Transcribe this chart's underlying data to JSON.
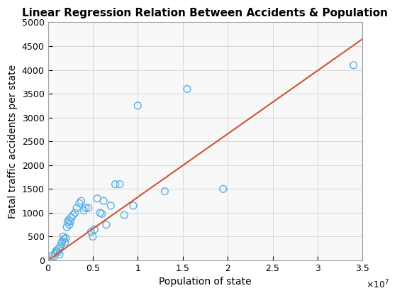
{
  "scatter_x": [
    500000,
    700000,
    800000,
    900000,
    1000000,
    1100000,
    1200000,
    1300000,
    1400000,
    1500000,
    1600000,
    1700000,
    1800000,
    1900000,
    2000000,
    2100000,
    2200000,
    2300000,
    2400000,
    2500000,
    2600000,
    2800000,
    3000000,
    3200000,
    3500000,
    3700000,
    4000000,
    4200000,
    4500000,
    4800000,
    5000000,
    5200000,
    5500000,
    5800000,
    6000000,
    6200000,
    6500000,
    7000000,
    7500000,
    8000000,
    8500000,
    9500000,
    10000000,
    13000000,
    15500000,
    19500000,
    34000000
  ],
  "scatter_y": [
    100,
    80,
    150,
    200,
    200,
    170,
    250,
    130,
    300,
    350,
    400,
    500,
    450,
    380,
    470,
    700,
    800,
    850,
    750,
    820,
    900,
    950,
    1000,
    1100,
    1200,
    1250,
    1050,
    1100,
    1100,
    600,
    500,
    650,
    1300,
    1000,
    980,
    1250,
    750,
    1150,
    1600,
    1600,
    950,
    1150,
    3250,
    1450,
    3600,
    1500,
    4100
  ],
  "line_x": [
    0,
    35000000
  ],
  "line_y": [
    0,
    4650
  ],
  "scatter_color": "#5baee3",
  "line_color": "#cc5533",
  "title": "Linear Regression Relation Between Accidents & Population",
  "xlabel": "Population of state",
  "ylabel": "Fatal traffic accidents per state",
  "xlim": [
    0,
    35000000
  ],
  "ylim": [
    0,
    5000
  ],
  "xtick_positions": [
    0,
    5000000,
    10000000,
    15000000,
    20000000,
    25000000,
    30000000,
    35000000
  ],
  "xtick_labels": [
    "0",
    "0.5",
    "1",
    "1.5",
    "2",
    "2.5",
    "3",
    "3.5"
  ],
  "ytick_vals": [
    0,
    500,
    1000,
    1500,
    2000,
    2500,
    3000,
    3500,
    4000,
    4500,
    5000
  ],
  "marker_size": 50,
  "marker_linewidth": 1.0,
  "line_width": 1.5,
  "title_fontsize": 11,
  "label_fontsize": 10,
  "tick_fontsize": 9,
  "axes_bg": "#f8f8f8",
  "fig_bg": "#ffffff"
}
